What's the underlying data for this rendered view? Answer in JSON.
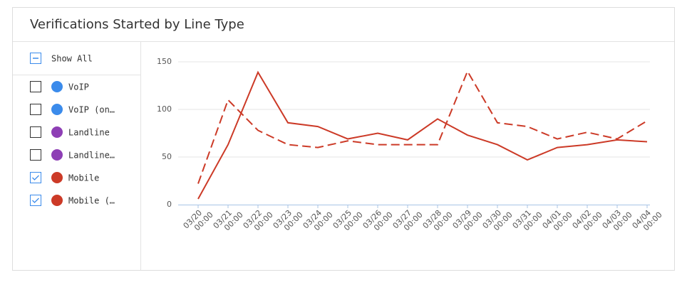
{
  "panel": {
    "title": "Verifications Started by Line Type",
    "show_all": "Show All"
  },
  "chart_data": {
    "type": "line",
    "categories": [
      "03/20 00:00",
      "03/21 00:00",
      "03/22 00:00",
      "03/23 00:00",
      "03/24 00:00",
      "03/25 00:00",
      "03/26 00:00",
      "03/27 00:00",
      "03/28 00:00",
      "03/29 00:00",
      "03/30 00:00",
      "03/31 00:00",
      "04/01 00:00",
      "04/02 00:00",
      "04/03 00:00",
      "04/04 00:00"
    ],
    "ylim": [
      0,
      150
    ],
    "yticks": [
      0,
      50,
      100,
      150
    ],
    "grid": true,
    "series": [
      {
        "name": "VoIP",
        "color": "#3b8beb",
        "checked": false
      },
      {
        "name": "VoIP (on…",
        "color": "#3b8beb",
        "checked": false
      },
      {
        "name": "Landline",
        "color": "#8e3fb5",
        "checked": false
      },
      {
        "name": "Landline…",
        "color": "#8e3fb5",
        "checked": false
      },
      {
        "name": "Mobile",
        "color": "#cc3a27",
        "checked": true,
        "dashed": false,
        "values": [
          6,
          63,
          139,
          86,
          82,
          69,
          75,
          68,
          90,
          73,
          63,
          47,
          60,
          63,
          68,
          66
        ]
      },
      {
        "name": "Mobile (…",
        "color": "#cc3a27",
        "checked": true,
        "dashed": true,
        "values": [
          22,
          110,
          78,
          63,
          60,
          67,
          63,
          63,
          63,
          140,
          86,
          82,
          69,
          76,
          69,
          88
        ]
      }
    ]
  }
}
